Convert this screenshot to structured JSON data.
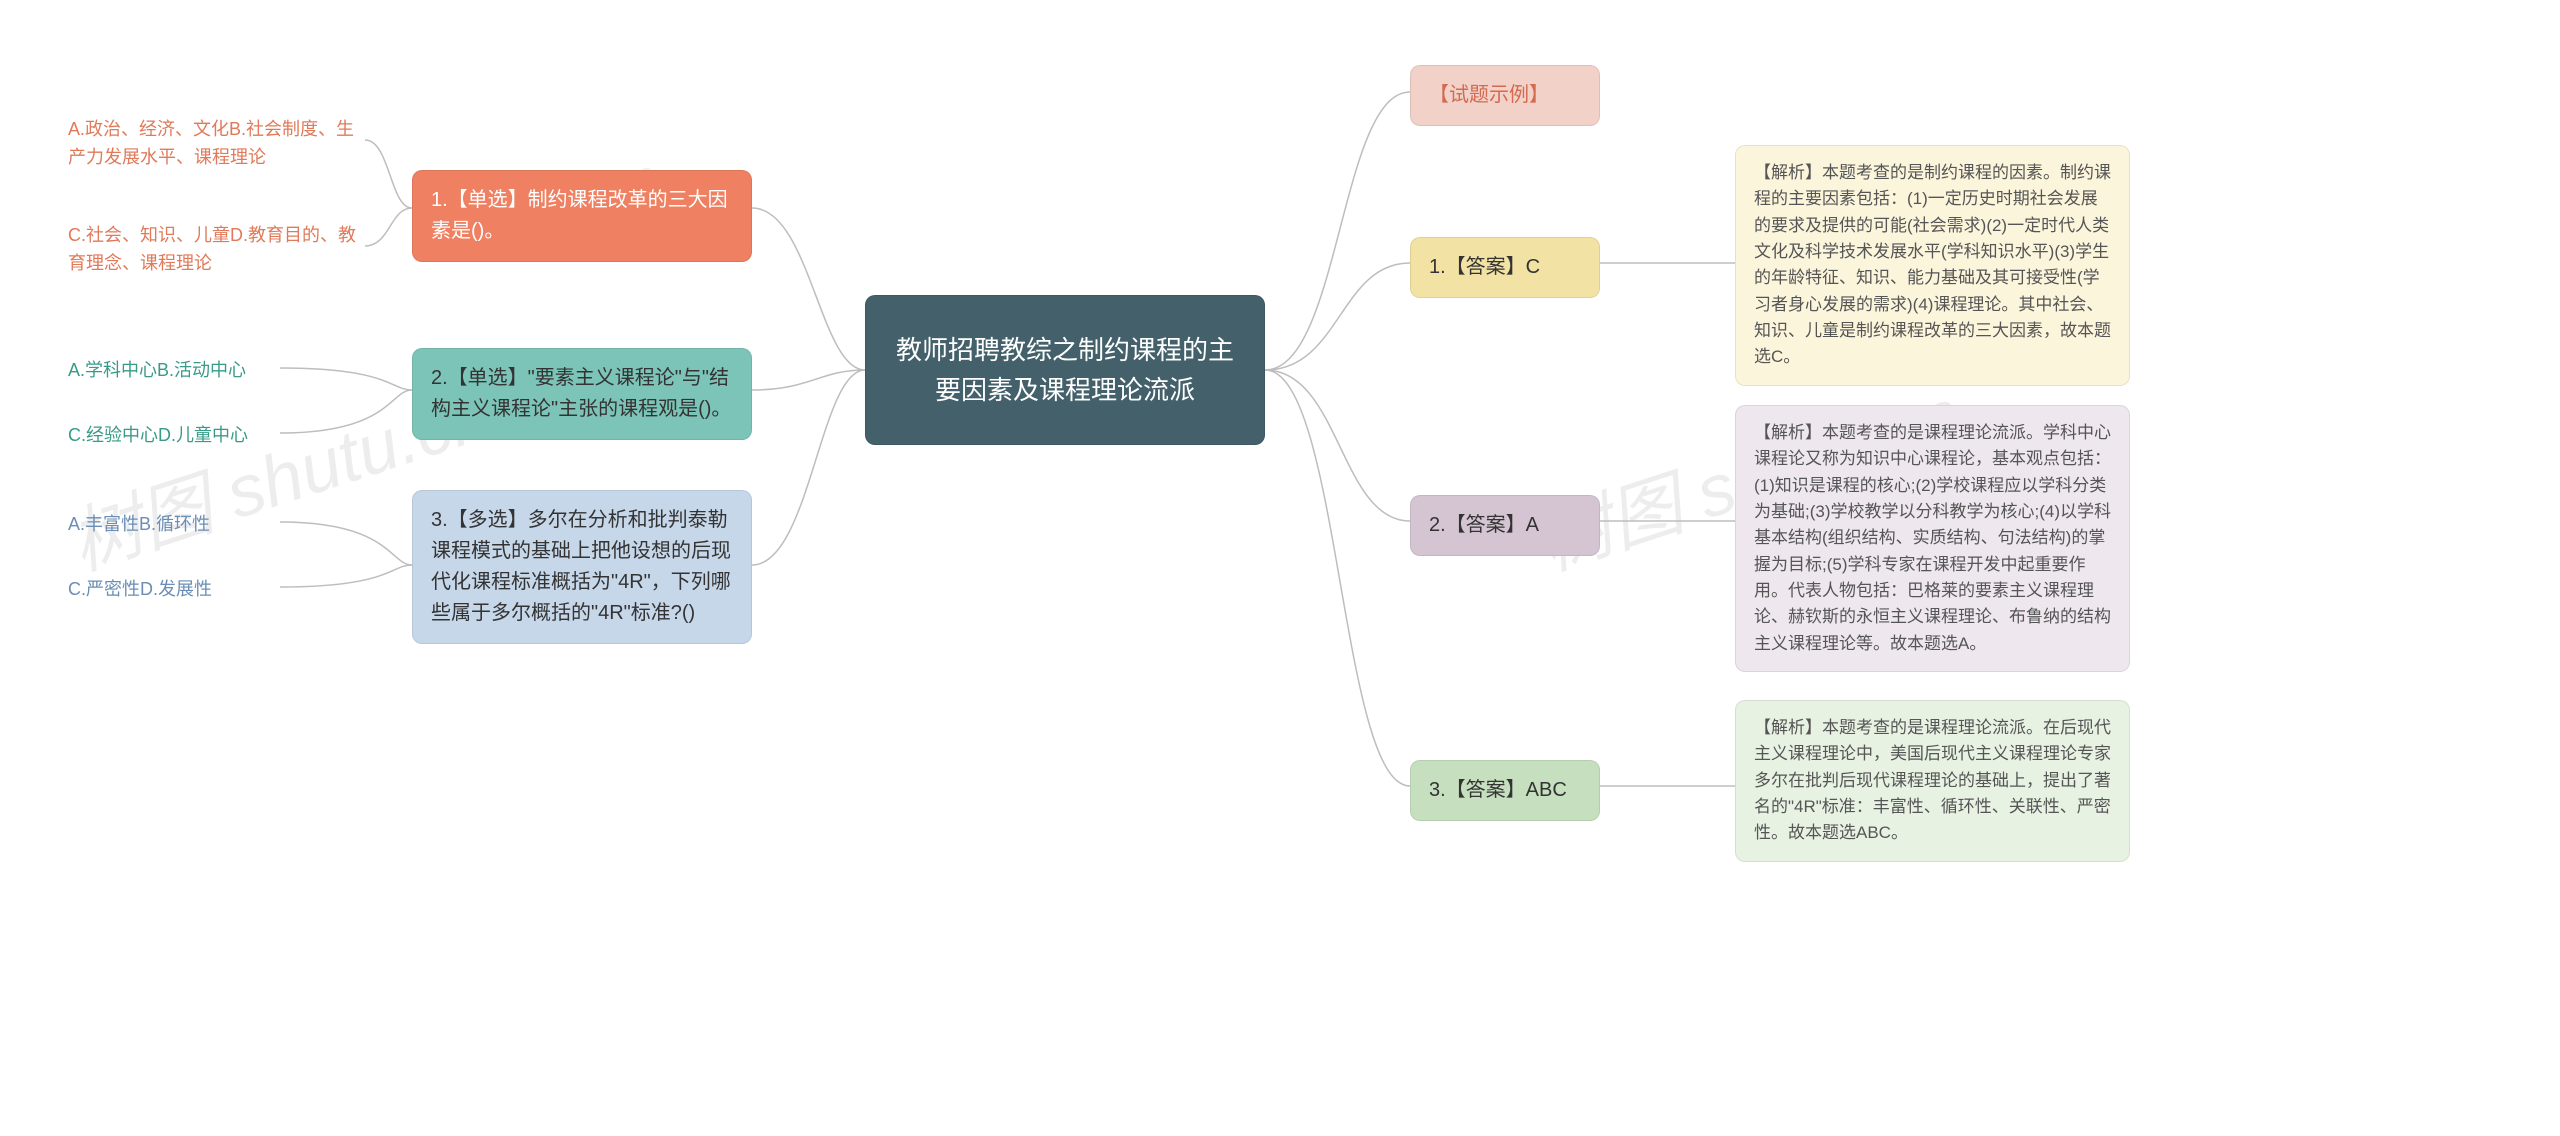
{
  "center": {
    "text": "教师招聘教综之制约课程的主要因素及课程理论流派",
    "bg": "#43606b",
    "fg": "#ffffff"
  },
  "left_questions": [
    {
      "id": "q1",
      "label": "1.【单选】制约课程改革的三大因素是()。",
      "bg": "#ef8062",
      "fg": "#ffffff",
      "options": [
        {
          "id": "q1a",
          "text": "A.政治、经济、文化B.社会制度、生产力发展水平、课程理论",
          "color": "#e07a5a"
        },
        {
          "id": "q1b",
          "text": "C.社会、知识、儿童D.教育目的、教育理念、课程理论",
          "color": "#e07a5a"
        }
      ]
    },
    {
      "id": "q2",
      "label": "2.【单选】\"要素主义课程论\"与\"结构主义课程论\"主张的课程观是()。",
      "bg": "#7cc4b8",
      "fg": "#333333",
      "options": [
        {
          "id": "q2a",
          "text": "A.学科中心B.活动中心",
          "color": "#3a9a88"
        },
        {
          "id": "q2b",
          "text": "C.经验中心D.儿童中心",
          "color": "#3a9a88"
        }
      ]
    },
    {
      "id": "q3",
      "label": "3.【多选】多尔在分析和批判泰勒课程模式的基础上把他设想的后现代化课程标准概括为\"4R\"，下列哪些属于多尔概括的\"4R\"标准?()",
      "bg": "#c7d7ea",
      "fg": "#333333",
      "options": [
        {
          "id": "q3a",
          "text": "A.丰富性B.循环性",
          "color": "#6a8eb5"
        },
        {
          "id": "q3b",
          "text": "C.严密性D.发展性",
          "color": "#6a8eb5"
        }
      ]
    }
  ],
  "right_items": [
    {
      "id": "r0",
      "label": "【试题示例】",
      "bg": "#f1d1c8",
      "fg": "#d46a50",
      "explain": null
    },
    {
      "id": "r1",
      "label": "1.【答案】C",
      "bg": "#f2e2a4",
      "fg": "#333333",
      "explain": {
        "id": "e1",
        "bg": "#fbf5dc",
        "text": "【解析】本题考查的是制约课程的因素。制约课程的主要因素包括：(1)一定历史时期社会发展的要求及提供的可能(社会需求)(2)一定时代人类文化及科学技术发展水平(学科知识水平)(3)学生的年龄特征、知识、能力基础及其可接受性(学习者身心发展的需求)(4)课程理论。其中社会、知识、儿童是制约课程改革的三大因素，故本题选C。"
      }
    },
    {
      "id": "r2",
      "label": "2.【答案】A",
      "bg": "#d5c5d3",
      "fg": "#333333",
      "explain": {
        "id": "e2",
        "bg": "#efe7ee",
        "text": "【解析】本题考查的是课程理论流派。学科中心课程论又称为知识中心课程论，基本观点包括：(1)知识是课程的核心;(2)学校课程应以学科分类为基础;(3)学校教学以分科教学为核心;(4)以学科基本结构(组织结构、实质结构、句法结构)的掌握为目标;(5)学科专家在课程开发中起重要作用。代表人物包括：巴格莱的要素主义课程理论、赫钦斯的永恒主义课程理论、布鲁纳的结构主义课程理论等。故本题选A。"
      }
    },
    {
      "id": "r3",
      "label": "3.【答案】ABC",
      "bg": "#c6dfbe",
      "fg": "#333333",
      "explain": {
        "id": "e3",
        "bg": "#e8f2e3",
        "text": "【解析】本题考查的是课程理论流派。在后现代主义课程理论中，美国后现代主义课程理论专家多尔在批判后现代课程理论的基础上，提出了著名的\"4R\"标准：丰富性、循环性、关联性、严密性。故本题选ABC。"
      }
    }
  ],
  "watermark": "树图 shutu.cn",
  "watermark_small": "shutu.cn",
  "connectors": {
    "stroke": "#bdbdbd",
    "stroke_width": 1.5,
    "paths": [
      "M 865 370 C 820 370 810 208 752 208",
      "M 865 370 C 820 370 810 390 752 390",
      "M 865 370 C 820 370 810 565 752 565",
      "M 412 208 C 390 208 390 140 365 140",
      "M 412 208 C 390 208 390 246 365 246",
      "M 412 390 C 390 390 390 368 280 368",
      "M 412 390 C 390 390 390 433 280 433",
      "M 412 565 C 390 565 390 522 280 522",
      "M 412 565 C 390 565 390 587 280 587",
      "M 1265 370 C 1340 370 1340 92 1410 92",
      "M 1265 370 C 1340 370 1340 263 1410 263",
      "M 1265 370 C 1340 370 1340 521 1410 521",
      "M 1265 370 C 1340 370 1340 786 1410 786",
      "M 1600 263 C 1670 263 1670 263 1735 263",
      "M 1600 521 C 1670 521 1670 521 1735 521",
      "M 1600 786 C 1670 786 1670 786 1735 786"
    ]
  }
}
